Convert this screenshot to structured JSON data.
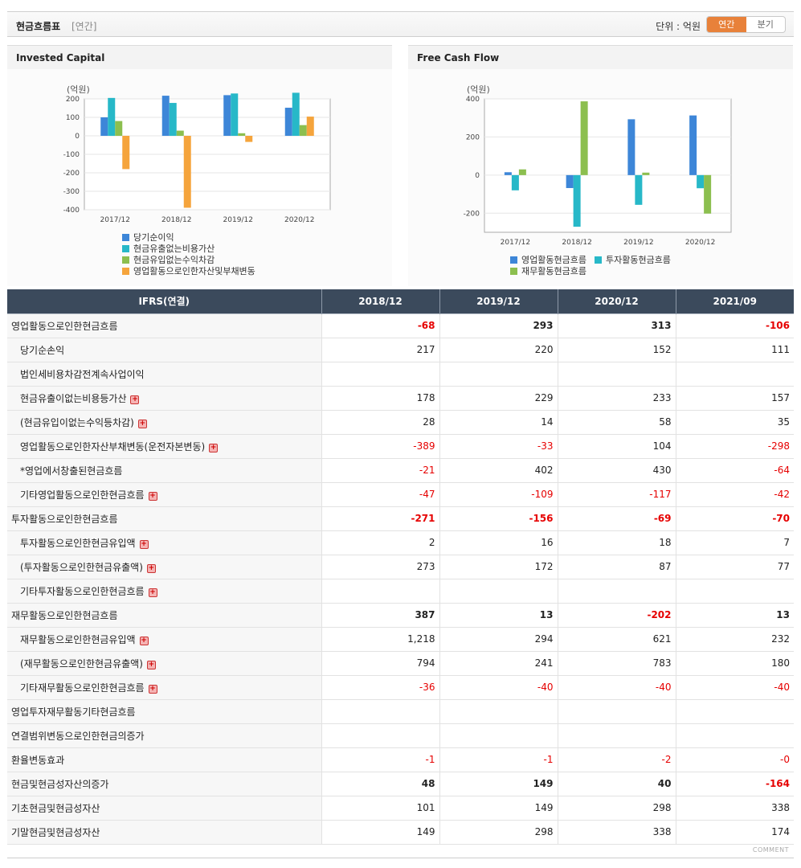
{
  "header": {
    "title": "현금흐름표",
    "sub": "[연간]",
    "unit": "단위 : 억원",
    "toggle_annual": "연간",
    "toggle_quarter": "분기"
  },
  "colors": {
    "series": [
      "#3d86d8",
      "#27b8c8",
      "#8cbf4f",
      "#f5a43c"
    ],
    "negative": "#e60000",
    "header_bg": "#3b4a5c"
  },
  "chart_data": [
    {
      "type": "bar",
      "title": "Invested Capital",
      "ylabel": "(억원)",
      "categories": [
        "2017/12",
        "2018/12",
        "2019/12",
        "2020/12"
      ],
      "ylim": [
        -400,
        200
      ],
      "yticks": [
        200,
        100,
        0,
        -100,
        -200,
        -300,
        -400
      ],
      "series": [
        {
          "name": "당기순이익",
          "values": [
            100,
            217,
            220,
            152
          ]
        },
        {
          "name": "현금유출없는비용가산",
          "values": [
            205,
            178,
            229,
            233
          ]
        },
        {
          "name": "현금유입없는수익차감",
          "values": [
            80,
            28,
            14,
            58
          ]
        },
        {
          "name": "영업활동으로인한자산및부채변동",
          "values": [
            -180,
            -389,
            -33,
            104
          ]
        }
      ]
    },
    {
      "type": "bar",
      "title": "Free Cash Flow",
      "ylabel": "(억원)",
      "categories": [
        "2017/12",
        "2018/12",
        "2019/12",
        "2020/12"
      ],
      "ylim": [
        -300,
        400
      ],
      "yticks": [
        400,
        200,
        0,
        -200
      ],
      "series": [
        {
          "name": "영업활동현금흐름",
          "values": [
            15,
            -68,
            293,
            313
          ]
        },
        {
          "name": "투자활동현금흐름",
          "values": [
            -80,
            -271,
            -156,
            -69
          ]
        },
        {
          "name": "재무활동현금흐름",
          "values": [
            30,
            387,
            13,
            -202
          ]
        }
      ]
    }
  ],
  "table": {
    "header_label": "IFRS(연결)",
    "columns": [
      "2018/12",
      "2019/12",
      "2020/12",
      "2021/09"
    ],
    "rows": [
      {
        "label": "영업활동으로인한현금흐름",
        "sec": true,
        "plus": false,
        "cells": [
          "-68",
          "293",
          "313",
          "-106"
        ]
      },
      {
        "label": "당기순손익",
        "sec": false,
        "plus": false,
        "cells": [
          "217",
          "220",
          "152",
          "111"
        ]
      },
      {
        "label": "법인세비용차감전계속사업이익",
        "sec": false,
        "plus": false,
        "cells": [
          "",
          "",
          "",
          ""
        ]
      },
      {
        "label": "현금유출이없는비용등가산",
        "sec": false,
        "plus": true,
        "cells": [
          "178",
          "229",
          "233",
          "157"
        ]
      },
      {
        "label": "(현금유입이없는수익등차감)",
        "sec": false,
        "plus": true,
        "cells": [
          "28",
          "14",
          "58",
          "35"
        ]
      },
      {
        "label": "영업활동으로인한자산부채변동(운전자본변동)",
        "sec": false,
        "plus": true,
        "cells": [
          "-389",
          "-33",
          "104",
          "-298"
        ]
      },
      {
        "label": "*영업에서창출된현금흐름",
        "sec": false,
        "plus": false,
        "cells": [
          "-21",
          "402",
          "430",
          "-64"
        ]
      },
      {
        "label": "기타영업활동으로인한현금흐름",
        "sec": false,
        "plus": true,
        "cells": [
          "-47",
          "-109",
          "-117",
          "-42"
        ]
      },
      {
        "label": "투자활동으로인한현금흐름",
        "sec": true,
        "plus": false,
        "cells": [
          "-271",
          "-156",
          "-69",
          "-70"
        ]
      },
      {
        "label": "투자활동으로인한현금유입액",
        "sec": false,
        "plus": true,
        "cells": [
          "2",
          "16",
          "18",
          "7"
        ]
      },
      {
        "label": "(투자활동으로인한현금유출액)",
        "sec": false,
        "plus": true,
        "cells": [
          "273",
          "172",
          "87",
          "77"
        ]
      },
      {
        "label": "기타투자활동으로인한현금흐름",
        "sec": false,
        "plus": true,
        "cells": [
          "",
          "",
          "",
          ""
        ]
      },
      {
        "label": "재무활동으로인한현금흐름",
        "sec": true,
        "plus": false,
        "cells": [
          "387",
          "13",
          "-202",
          "13"
        ]
      },
      {
        "label": "재무활동으로인한현금유입액",
        "sec": false,
        "plus": true,
        "cells": [
          "1,218",
          "294",
          "621",
          "232"
        ]
      },
      {
        "label": "(재무활동으로인한현금유출액)",
        "sec": false,
        "plus": true,
        "cells": [
          "794",
          "241",
          "783",
          "180"
        ]
      },
      {
        "label": "기타재무활동으로인한현금흐름",
        "sec": false,
        "plus": true,
        "cells": [
          "-36",
          "-40",
          "-40",
          "-40"
        ]
      },
      {
        "label": "영업투자재무활동기타현금흐름",
        "sec": true,
        "plus": false,
        "cells": [
          "",
          "",
          "",
          ""
        ]
      },
      {
        "label": "연결범위변동으로인한현금의증가",
        "sec": false,
        "plus": false,
        "cells": [
          "",
          "",
          "",
          ""
        ]
      },
      {
        "label": "환율변동효과",
        "sec": false,
        "plus": false,
        "cells": [
          "-1",
          "-1",
          "-2",
          "-0"
        ]
      },
      {
        "label": "현금및현금성자산의증가",
        "sec": false,
        "plus": false,
        "bold": true,
        "cells": [
          "48",
          "149",
          "40",
          "-164"
        ]
      },
      {
        "label": "기초현금및현금성자산",
        "sec": false,
        "plus": false,
        "cells": [
          "101",
          "149",
          "298",
          "338"
        ]
      },
      {
        "label": "기말현금및현금성자산",
        "sec": false,
        "plus": false,
        "cells": [
          "149",
          "298",
          "338",
          "174"
        ]
      }
    ]
  },
  "footer": {
    "comment": "COMMENT"
  }
}
